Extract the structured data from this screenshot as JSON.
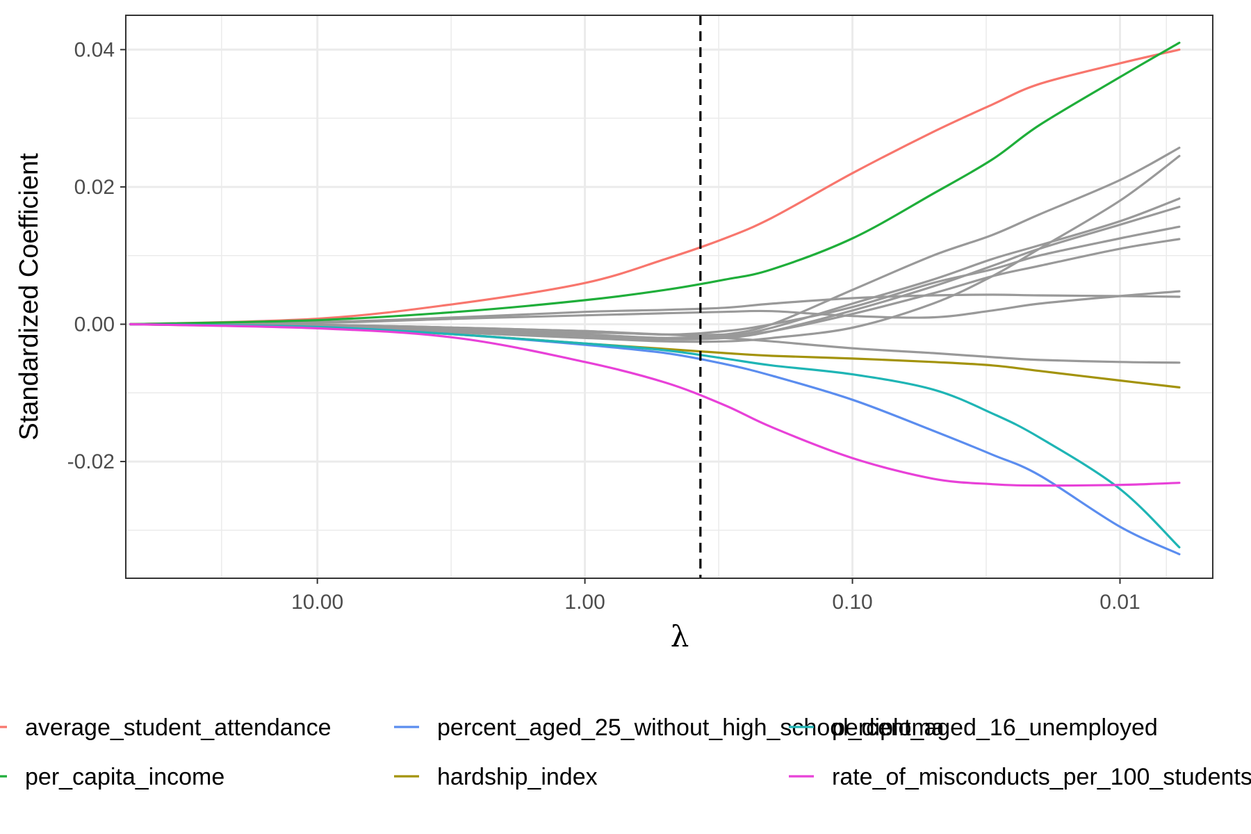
{
  "chart_data": {
    "type": "line",
    "title": "",
    "xlabel": "λ",
    "ylabel": "Standardized Coefficient",
    "x_scale": "log-reversed",
    "xlim": [
      52,
      0.0045
    ],
    "ylim": [
      -0.037,
      0.045
    ],
    "x_ticks": [
      {
        "value": 10,
        "label": "10.00"
      },
      {
        "value": 1,
        "label": "1.00"
      },
      {
        "value": 0.1,
        "label": "0.10"
      },
      {
        "value": 0.01,
        "label": "0.01"
      }
    ],
    "y_ticks": [
      {
        "value": 0.04,
        "label": "0.04"
      },
      {
        "value": 0.02,
        "label": "0.02"
      },
      {
        "value": 0.0,
        "label": "0.00"
      },
      {
        "value": -0.02,
        "label": "-0.02"
      }
    ],
    "grid": true,
    "legend_position": "bottom",
    "vline": {
      "x": 0.37,
      "style": "dashed",
      "color": "#000000"
    },
    "series": [
      {
        "name": "average_student_attendance",
        "color": "#F8766D",
        "points": [
          [
            50,
            0
          ],
          [
            10,
            0.0008
          ],
          [
            3,
            0.003
          ],
          [
            1,
            0.006
          ],
          [
            0.5,
            0.0095
          ],
          [
            0.3,
            0.0125
          ],
          [
            0.2,
            0.0155
          ],
          [
            0.1,
            0.022
          ],
          [
            0.05,
            0.028
          ],
          [
            0.03,
            0.032
          ],
          [
            0.02,
            0.035
          ],
          [
            0.01,
            0.038
          ],
          [
            0.006,
            0.04
          ]
        ]
      },
      {
        "name": "per_capita_income",
        "color": "#1FAE3A",
        "points": [
          [
            50,
            0
          ],
          [
            10,
            0.0006
          ],
          [
            3,
            0.0018
          ],
          [
            1,
            0.0035
          ],
          [
            0.5,
            0.005
          ],
          [
            0.3,
            0.0065
          ],
          [
            0.2,
            0.008
          ],
          [
            0.1,
            0.0125
          ],
          [
            0.05,
            0.019
          ],
          [
            0.03,
            0.024
          ],
          [
            0.02,
            0.029
          ],
          [
            0.01,
            0.036
          ],
          [
            0.006,
            0.041
          ]
        ]
      },
      {
        "name": "percent_aged_25_without_high_school_diploma",
        "color": "#5B8DEF",
        "points": [
          [
            50,
            0
          ],
          [
            10,
            -0.0004
          ],
          [
            3,
            -0.0015
          ],
          [
            1,
            -0.003
          ],
          [
            0.5,
            -0.0042
          ],
          [
            0.3,
            -0.0058
          ],
          [
            0.2,
            -0.0075
          ],
          [
            0.1,
            -0.011
          ],
          [
            0.05,
            -0.0155
          ],
          [
            0.03,
            -0.019
          ],
          [
            0.02,
            -0.022
          ],
          [
            0.01,
            -0.0295
          ],
          [
            0.006,
            -0.0335
          ]
        ]
      },
      {
        "name": "hardship_index",
        "color": "#A3930C",
        "points": [
          [
            50,
            0
          ],
          [
            10,
            -0.0005
          ],
          [
            3,
            -0.0015
          ],
          [
            1,
            -0.0028
          ],
          [
            0.5,
            -0.0036
          ],
          [
            0.3,
            -0.0042
          ],
          [
            0.2,
            -0.0046
          ],
          [
            0.1,
            -0.005
          ],
          [
            0.05,
            -0.0055
          ],
          [
            0.03,
            -0.006
          ],
          [
            0.02,
            -0.0068
          ],
          [
            0.01,
            -0.0082
          ],
          [
            0.006,
            -0.0092
          ]
        ]
      },
      {
        "name": "percent_aged_16_unemployed",
        "color": "#1FB5B5",
        "points": [
          [
            50,
            0
          ],
          [
            10,
            -0.0004
          ],
          [
            3,
            -0.0015
          ],
          [
            1,
            -0.0028
          ],
          [
            0.5,
            -0.0038
          ],
          [
            0.3,
            -0.005
          ],
          [
            0.2,
            -0.006
          ],
          [
            0.1,
            -0.0073
          ],
          [
            0.05,
            -0.0095
          ],
          [
            0.03,
            -0.013
          ],
          [
            0.02,
            -0.0165
          ],
          [
            0.01,
            -0.024
          ],
          [
            0.006,
            -0.0325
          ]
        ]
      },
      {
        "name": "rate_of_misconducts_per_100_students",
        "color": "#E841D8",
        "points": [
          [
            50,
            0
          ],
          [
            10,
            -0.0006
          ],
          [
            3,
            -0.002
          ],
          [
            1,
            -0.0055
          ],
          [
            0.5,
            -0.0085
          ],
          [
            0.3,
            -0.0118
          ],
          [
            0.2,
            -0.015
          ],
          [
            0.1,
            -0.0195
          ],
          [
            0.05,
            -0.0225
          ],
          [
            0.03,
            -0.0233
          ],
          [
            0.02,
            -0.0235
          ],
          [
            0.01,
            -0.0234
          ],
          [
            0.006,
            -0.0231
          ]
        ]
      },
      {
        "color": "#999999",
        "points": [
          [
            50,
            0
          ],
          [
            10,
            -0.0001
          ],
          [
            3,
            -0.0008
          ],
          [
            1,
            -0.0015
          ],
          [
            0.5,
            -0.002
          ],
          [
            0.3,
            -0.0015
          ],
          [
            0.2,
            0
          ],
          [
            0.1,
            0.005
          ],
          [
            0.05,
            0.01
          ],
          [
            0.03,
            0.013
          ],
          [
            0.02,
            0.016
          ],
          [
            0.01,
            0.021
          ],
          [
            0.006,
            0.0257
          ]
        ]
      },
      {
        "color": "#999999",
        "points": [
          [
            50,
            0
          ],
          [
            10,
            -0.0002
          ],
          [
            3,
            -0.0012
          ],
          [
            1,
            -0.002
          ],
          [
            0.5,
            -0.0025
          ],
          [
            0.3,
            -0.0025
          ],
          [
            0.2,
            -0.002
          ],
          [
            0.1,
            -0.0005
          ],
          [
            0.05,
            0.003
          ],
          [
            0.03,
            0.007
          ],
          [
            0.02,
            0.011
          ],
          [
            0.01,
            0.018
          ],
          [
            0.006,
            0.0245
          ]
        ]
      },
      {
        "color": "#999999",
        "points": [
          [
            50,
            0
          ],
          [
            10,
            -0.0002
          ],
          [
            3,
            -0.0008
          ],
          [
            1,
            -0.0015
          ],
          [
            0.5,
            -0.002
          ],
          [
            0.3,
            -0.0018
          ],
          [
            0.2,
            -0.0005
          ],
          [
            0.1,
            0.003
          ],
          [
            0.05,
            0.0065
          ],
          [
            0.03,
            0.0095
          ],
          [
            0.02,
            0.0115
          ],
          [
            0.01,
            0.015
          ],
          [
            0.006,
            0.0183
          ]
        ]
      },
      {
        "color": "#999999",
        "points": [
          [
            50,
            0
          ],
          [
            10,
            -0.0002
          ],
          [
            3,
            -0.001
          ],
          [
            1,
            -0.0018
          ],
          [
            0.5,
            -0.0022
          ],
          [
            0.3,
            -0.002
          ],
          [
            0.2,
            -0.001
          ],
          [
            0.1,
            0.002
          ],
          [
            0.05,
            0.0055
          ],
          [
            0.03,
            0.0085
          ],
          [
            0.02,
            0.011
          ],
          [
            0.01,
            0.0145
          ],
          [
            0.006,
            0.0171
          ]
        ]
      },
      {
        "color": "#999999",
        "points": [
          [
            50,
            0
          ],
          [
            10,
            -0.0001
          ],
          [
            3,
            -0.0005
          ],
          [
            1,
            -0.001
          ],
          [
            0.5,
            -0.0015
          ],
          [
            0.3,
            -0.001
          ],
          [
            0.2,
            0
          ],
          [
            0.1,
            0.0025
          ],
          [
            0.05,
            0.006
          ],
          [
            0.03,
            0.008
          ],
          [
            0.02,
            0.01
          ],
          [
            0.01,
            0.0125
          ],
          [
            0.006,
            0.0142
          ]
        ]
      },
      {
        "color": "#999999",
        "points": [
          [
            50,
            0
          ],
          [
            10,
            -0.0001
          ],
          [
            3,
            -0.0005
          ],
          [
            1,
            -0.001
          ],
          [
            0.5,
            -0.0015
          ],
          [
            0.3,
            -0.0015
          ],
          [
            0.2,
            -0.001
          ],
          [
            0.1,
            0.0015
          ],
          [
            0.05,
            0.0045
          ],
          [
            0.03,
            0.007
          ],
          [
            0.02,
            0.0085
          ],
          [
            0.01,
            0.011
          ],
          [
            0.006,
            0.0124
          ]
        ]
      },
      {
        "color": "#999999",
        "points": [
          [
            50,
            0
          ],
          [
            10,
            0.0003
          ],
          [
            3,
            0.001
          ],
          [
            1,
            0.0018
          ],
          [
            0.5,
            0.0021
          ],
          [
            0.3,
            0.0024
          ],
          [
            0.2,
            0.003
          ],
          [
            0.1,
            0.0038
          ],
          [
            0.05,
            0.0042
          ],
          [
            0.03,
            0.0043
          ],
          [
            0.02,
            0.0042
          ],
          [
            0.01,
            0.0041
          ],
          [
            0.006,
            0.004
          ]
        ]
      },
      {
        "color": "#999999",
        "points": [
          [
            50,
            0
          ],
          [
            10,
            0.0002
          ],
          [
            3,
            0.0008
          ],
          [
            1,
            0.0013
          ],
          [
            0.5,
            0.0016
          ],
          [
            0.3,
            0.0018
          ],
          [
            0.2,
            0.0019
          ],
          [
            0.1,
            0.0012
          ],
          [
            0.05,
            0.001
          ],
          [
            0.03,
            0.002
          ],
          [
            0.02,
            0.003
          ],
          [
            0.01,
            0.0041
          ],
          [
            0.006,
            0.0048
          ]
        ]
      },
      {
        "color": "#999999",
        "points": [
          [
            50,
            0
          ],
          [
            10,
            -0.0003
          ],
          [
            3,
            -0.0008
          ],
          [
            1,
            -0.0012
          ],
          [
            0.5,
            -0.0015
          ],
          [
            0.3,
            -0.002
          ],
          [
            0.2,
            -0.0025
          ],
          [
            0.1,
            -0.0035
          ],
          [
            0.05,
            -0.0042
          ],
          [
            0.03,
            -0.0048
          ],
          [
            0.02,
            -0.0052
          ],
          [
            0.01,
            -0.0055
          ],
          [
            0.006,
            -0.0056
          ]
        ]
      }
    ]
  }
}
